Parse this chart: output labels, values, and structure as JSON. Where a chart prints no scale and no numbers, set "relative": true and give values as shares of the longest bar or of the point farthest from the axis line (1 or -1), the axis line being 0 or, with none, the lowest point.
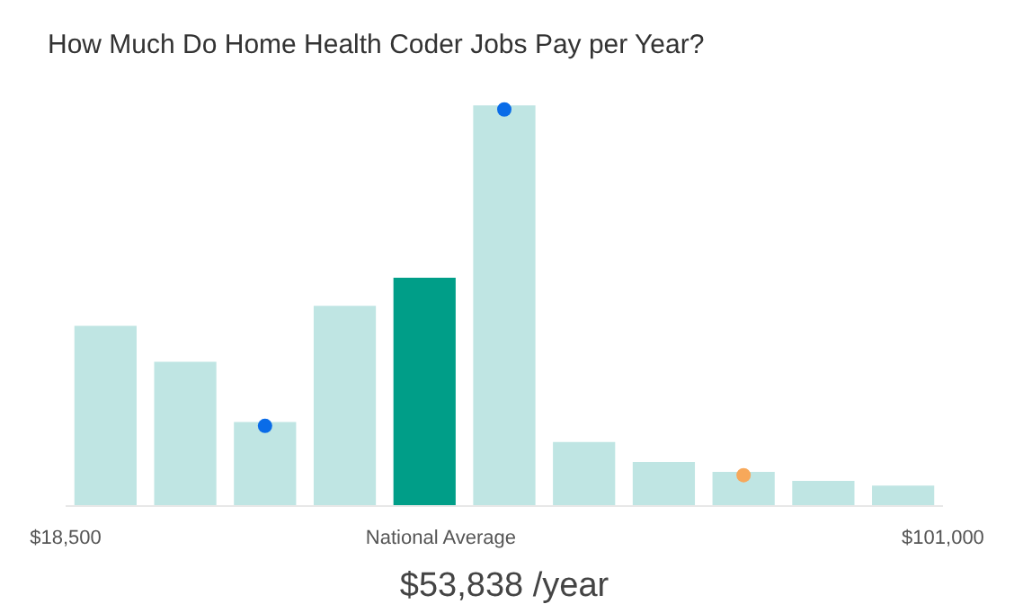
{
  "chart_data": {
    "type": "bar",
    "title": "How Much Do Home Health Coder Jobs Pay per Year?",
    "relative": true,
    "x": [
      22250,
      29750,
      37250,
      44750,
      52250,
      59750,
      67250,
      74750,
      82250,
      89750,
      97250
    ],
    "values": [
      0.45,
      0.36,
      0.21,
      0.5,
      0.57,
      1,
      0.16,
      0.11,
      0.085,
      0.063,
      0.051
    ],
    "colors": [
      "#bfe5e3",
      "#bfe5e3",
      "#bfe5e3",
      "#bfe5e3",
      "#009e88",
      "#bfe5e3",
      "#bfe5e3",
      "#bfe5e3",
      "#bfe5e3",
      "#bfe5e3",
      "#bfe5e3"
    ],
    "series": [
      {
        "type": "scatter",
        "color": "#0a6ce8",
        "x": [
          37250,
          59750
        ],
        "values": [
          0.2,
          0.99
        ]
      },
      {
        "type": "scatter",
        "color": "#f7a85a",
        "x": [
          82250
        ],
        "values": [
          0.077
        ]
      }
    ],
    "xlim": [
      18500,
      101000
    ],
    "xticks": [
      {
        "value": 18500,
        "label": "$18,500"
      },
      {
        "value": 53838,
        "label": "National Average"
      },
      {
        "value": 101000,
        "label": "$101,000"
      }
    ],
    "marker": "circle",
    "grid": false,
    "annotations": [
      "$53,838 /year"
    ]
  }
}
